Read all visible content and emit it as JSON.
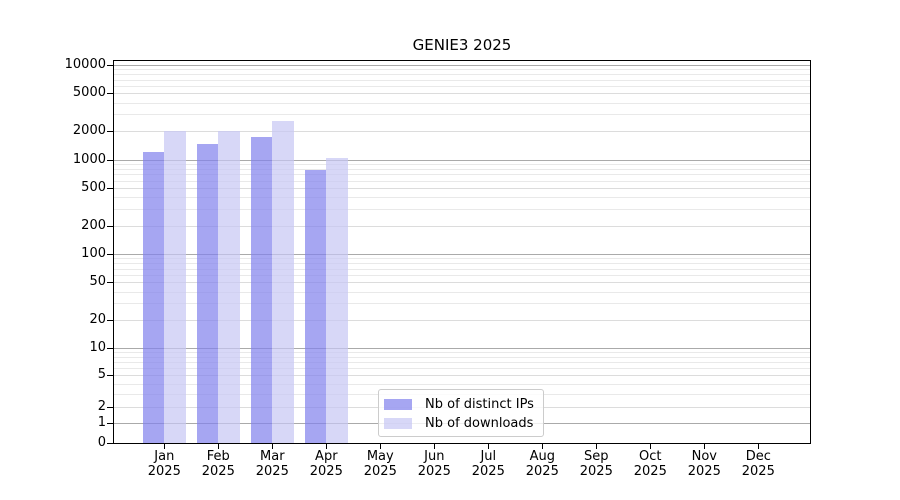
{
  "figure": {
    "title": "GENIE3 2025"
  },
  "chart_data": {
    "type": "bar",
    "title": "GENIE3 2025",
    "categories": [
      "Jan 2025",
      "Feb 2025",
      "Mar 2025",
      "Apr 2025",
      "May 2025",
      "Jun 2025",
      "Jul 2025",
      "Aug 2025",
      "Sep 2025",
      "Oct 2025",
      "Nov 2025",
      "Dec 2025"
    ],
    "series": [
      {
        "name": "Nb of distinct IPs",
        "color": "rgba(128,128,236,0.7)",
        "values": [
          1200,
          1450,
          1730,
          780,
          null,
          null,
          null,
          null,
          null,
          null,
          null,
          null
        ]
      },
      {
        "name": "Nb of downloads",
        "color": "rgba(198,198,243,0.7)",
        "values": [
          2000,
          1990,
          2580,
          1050,
          null,
          null,
          null,
          null,
          null,
          null,
          null,
          null
        ]
      }
    ],
    "xlabel": "",
    "ylabel": "",
    "y_axis": {
      "scale": "asinh (log-like, linear near zero)",
      "ticks": [
        0,
        1,
        2,
        5,
        10,
        20,
        50,
        100,
        200,
        500,
        1000,
        2000,
        5000,
        10000
      ],
      "minor_tick_multiples": [
        3,
        4,
        6,
        7,
        8,
        9
      ],
      "ylim": [
        0,
        11000
      ]
    },
    "grid": {
      "enabled": true,
      "major_pow10_color": "#aaaaaa",
      "major_other_color": "#dcdcdc",
      "minor_color": "#e9e9e9"
    },
    "legend": {
      "position": "lower center",
      "entries": [
        "Nb of distinct IPs",
        "Nb of downloads"
      ]
    }
  }
}
